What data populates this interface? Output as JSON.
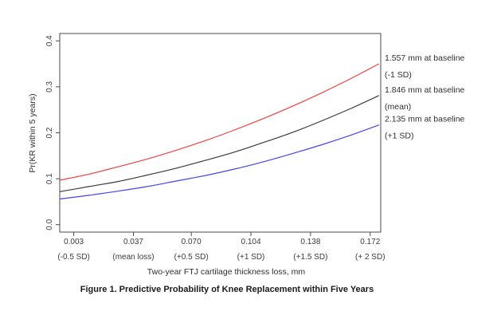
{
  "figure": {
    "caption": "Figure 1. Predictive Probability of Knee Replacement within Five Years"
  },
  "chart_data": {
    "type": "line",
    "title": "",
    "xlabel": "Two-year FTJ cartilage thickness loss, mm",
    "ylabel": "Pr(KR within 5 years)",
    "grid": false,
    "legend_position": "right-outside",
    "xlim": [
      -0.005,
      0.178
    ],
    "ylim": [
      -0.016,
      0.416
    ],
    "x_ticks": [
      {
        "value": 0.003,
        "label": "0.003",
        "sublabel": "(-0.5 SD)"
      },
      {
        "value": 0.037,
        "label": "0.037",
        "sublabel": "(mean loss)"
      },
      {
        "value": 0.07,
        "label": "0.070",
        "sublabel": "(+0.5 SD)"
      },
      {
        "value": 0.104,
        "label": "0.104",
        "sublabel": "(+1 SD)"
      },
      {
        "value": 0.138,
        "label": "0.138",
        "sublabel": "(+1.5 SD)"
      },
      {
        "value": 0.172,
        "label": "0.172",
        "sublabel": "(+ 2 SD)"
      }
    ],
    "y_ticks": [
      {
        "value": 0.0,
        "label": "0.0"
      },
      {
        "value": 0.1,
        "label": "0.1"
      },
      {
        "value": 0.2,
        "label": "0.2"
      },
      {
        "value": 0.3,
        "label": "0.3"
      },
      {
        "value": 0.4,
        "label": "0.4"
      }
    ],
    "x": [
      -0.005,
      0.0116,
      0.0282,
      0.0448,
      0.0614,
      0.078,
      0.0946,
      0.1112,
      0.1278,
      0.1444,
      0.161,
      0.177
    ],
    "series": [
      {
        "name": "1.557 mm at baseline (-1 SD)",
        "label_lines": [
          "1.557 mm at baseline",
          "(-1 SD)"
        ],
        "color": "#f04141",
        "values": [
          0.097,
          0.11,
          0.126,
          0.143,
          0.162,
          0.183,
          0.206,
          0.231,
          0.258,
          0.287,
          0.318,
          0.35
        ]
      },
      {
        "name": "1.846 mm at baseline (mean)",
        "label_lines": [
          "1.846 mm at baseline",
          "(mean)"
        ],
        "color": "#3a3a3a",
        "values": [
          0.072,
          0.083,
          0.094,
          0.108,
          0.123,
          0.14,
          0.158,
          0.179,
          0.201,
          0.226,
          0.253,
          0.281
        ]
      },
      {
        "name": "2.135 mm at baseline (+1 SD)",
        "label_lines": [
          "2.135 mm at baseline",
          "(+1 SD)"
        ],
        "color": "#4545ee",
        "values": [
          0.056,
          0.064,
          0.073,
          0.083,
          0.095,
          0.107,
          0.121,
          0.137,
          0.155,
          0.174,
          0.195,
          0.217
        ]
      }
    ]
  }
}
